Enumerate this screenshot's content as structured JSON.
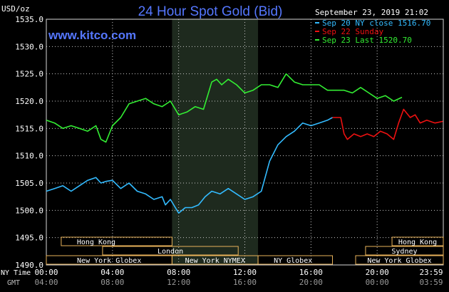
{
  "chart_data": {
    "type": "line",
    "title": "24 Hour Spot Gold (Bid)",
    "ylabel": "USD/oz",
    "site": "www.kitco.com",
    "timestamp": "September 23, 2019 21:02",
    "ylim": [
      1490,
      1535
    ],
    "yticks": [
      "1535.0",
      "1530.0",
      "1525.0",
      "1520.0",
      "1515.0",
      "1510.0",
      "1505.0",
      "1500.0",
      "1495.0",
      "1490.0"
    ],
    "xlim_hours": [
      0,
      24
    ],
    "xticks_ny": [
      "00:00",
      "04:00",
      "08:00",
      "12:00",
      "16:00",
      "20:00",
      "23:59"
    ],
    "xticks_gmt": [
      "04:00",
      "08:00",
      "12:00",
      "16:00",
      "20:00",
      "00:00",
      "03:59"
    ],
    "x_row_labels": [
      "NY Time",
      "GMT"
    ],
    "highlight_hours": [
      7.6,
      12.8
    ],
    "colors": {
      "sep20": "#33bbff",
      "sep22": "#ee1111",
      "sep23": "#33ee33",
      "grid": "#c8c8c8",
      "title": "#5577ff",
      "site": "#5577ff",
      "sessionFill": "#e8b25a"
    },
    "legend": [
      {
        "label": "Sep 20 NY close 1516.70",
        "color": "#33bbff"
      },
      {
        "label": "Sep 22 Sunday",
        "color": "#ee1111"
      },
      {
        "label": "Sep 23 Last 1520.70",
        "color": "#33ee33"
      }
    ],
    "series": [
      {
        "name": "Sep 20 NY close 1516.70",
        "color": "#33bbff",
        "x": [
          0,
          0.5,
          1,
          1.5,
          2,
          2.5,
          3,
          3.3,
          3.6,
          4,
          4.5,
          5,
          5.5,
          6,
          6.5,
          7,
          7.2,
          7.5,
          7.8,
          8,
          8.4,
          8.8,
          9.2,
          9.6,
          10,
          10.5,
          11,
          11.5,
          12,
          12.5,
          13,
          13.5,
          14,
          14.5,
          15,
          15.5,
          16,
          16.5,
          17,
          17.3
        ],
        "y": [
          1503.5,
          1504,
          1504.5,
          1503.5,
          1504.5,
          1505.5,
          1506,
          1505,
          1505.3,
          1505.5,
          1504,
          1505,
          1503.5,
          1503,
          1502,
          1502.5,
          1501,
          1502,
          1500.5,
          1499.5,
          1500.5,
          1500.5,
          1501,
          1502.5,
          1503.5,
          1503,
          1504,
          1503,
          1502,
          1502.5,
          1503.5,
          1509,
          1512,
          1513.5,
          1514.5,
          1516,
          1515.5,
          1516,
          1516.5,
          1517
        ]
      },
      {
        "name": "Sep 22 Sunday",
        "color": "#ee1111",
        "x": [
          17.3,
          17.8,
          18,
          18.2,
          18.6,
          19,
          19.4,
          19.8,
          20.2,
          20.6,
          21,
          21.3,
          21.6,
          22,
          22.3,
          22.6,
          23,
          23.5,
          23.98
        ],
        "y": [
          1517,
          1517,
          1514,
          1513,
          1514,
          1513.5,
          1514,
          1513.5,
          1514.5,
          1514,
          1513,
          1516,
          1518.5,
          1517,
          1517.5,
          1516,
          1516.5,
          1516,
          1516.3
        ]
      },
      {
        "name": "Sep 23 Last 1520.70",
        "color": "#33ee33",
        "x": [
          0,
          0.5,
          1,
          1.5,
          2,
          2.5,
          3,
          3.3,
          3.6,
          4,
          4.5,
          5,
          5.5,
          6,
          6.5,
          7,
          7.5,
          8,
          8.5,
          9,
          9.5,
          10,
          10.3,
          10.6,
          11,
          11.5,
          12,
          12.5,
          13,
          13.5,
          14,
          14.5,
          15,
          15.5,
          16,
          16.5,
          17,
          17.5,
          18,
          18.5,
          19,
          19.5,
          20,
          20.5,
          21,
          21.5
        ],
        "y": [
          1516.5,
          1516,
          1515,
          1515.5,
          1515,
          1514.5,
          1515.5,
          1513,
          1512.5,
          1515.5,
          1517,
          1519.5,
          1520,
          1520.5,
          1519.5,
          1519,
          1520,
          1517.5,
          1518,
          1519,
          1518.5,
          1523.5,
          1524,
          1523,
          1524,
          1523,
          1521.5,
          1522,
          1523,
          1523,
          1522.5,
          1525,
          1523.5,
          1523,
          1523,
          1523,
          1522,
          1522,
          1522,
          1521.5,
          1522.5,
          1521.5,
          1520.5,
          1521,
          1520,
          1520.7
        ]
      }
    ],
    "sessions": [
      {
        "label": "Hong Kong",
        "start": 0.9,
        "end": 7.6,
        "row": 1,
        "align": "left"
      },
      {
        "label": "London",
        "start": 3.4,
        "end": 11.6,
        "row": 2,
        "align": "center"
      },
      {
        "label": "New York Globex",
        "start": 0,
        "end": 7.6,
        "row": 3,
        "align": "center"
      },
      {
        "label": "New York NYMEX",
        "start": 7.6,
        "end": 12.8,
        "row": 3,
        "align": "center"
      },
      {
        "label": "NY Globex",
        "start": 12.8,
        "end": 17.3,
        "row": 3,
        "align": "left"
      },
      {
        "label": "Hong Kong",
        "start": 20.9,
        "end": 24,
        "row": 1,
        "align": "center"
      },
      {
        "label": "Sydney",
        "start": 19.3,
        "end": 24,
        "row": 2,
        "align": "center"
      },
      {
        "label": "New York Globex",
        "start": 18.7,
        "end": 24,
        "row": 3,
        "align": "center"
      }
    ]
  }
}
